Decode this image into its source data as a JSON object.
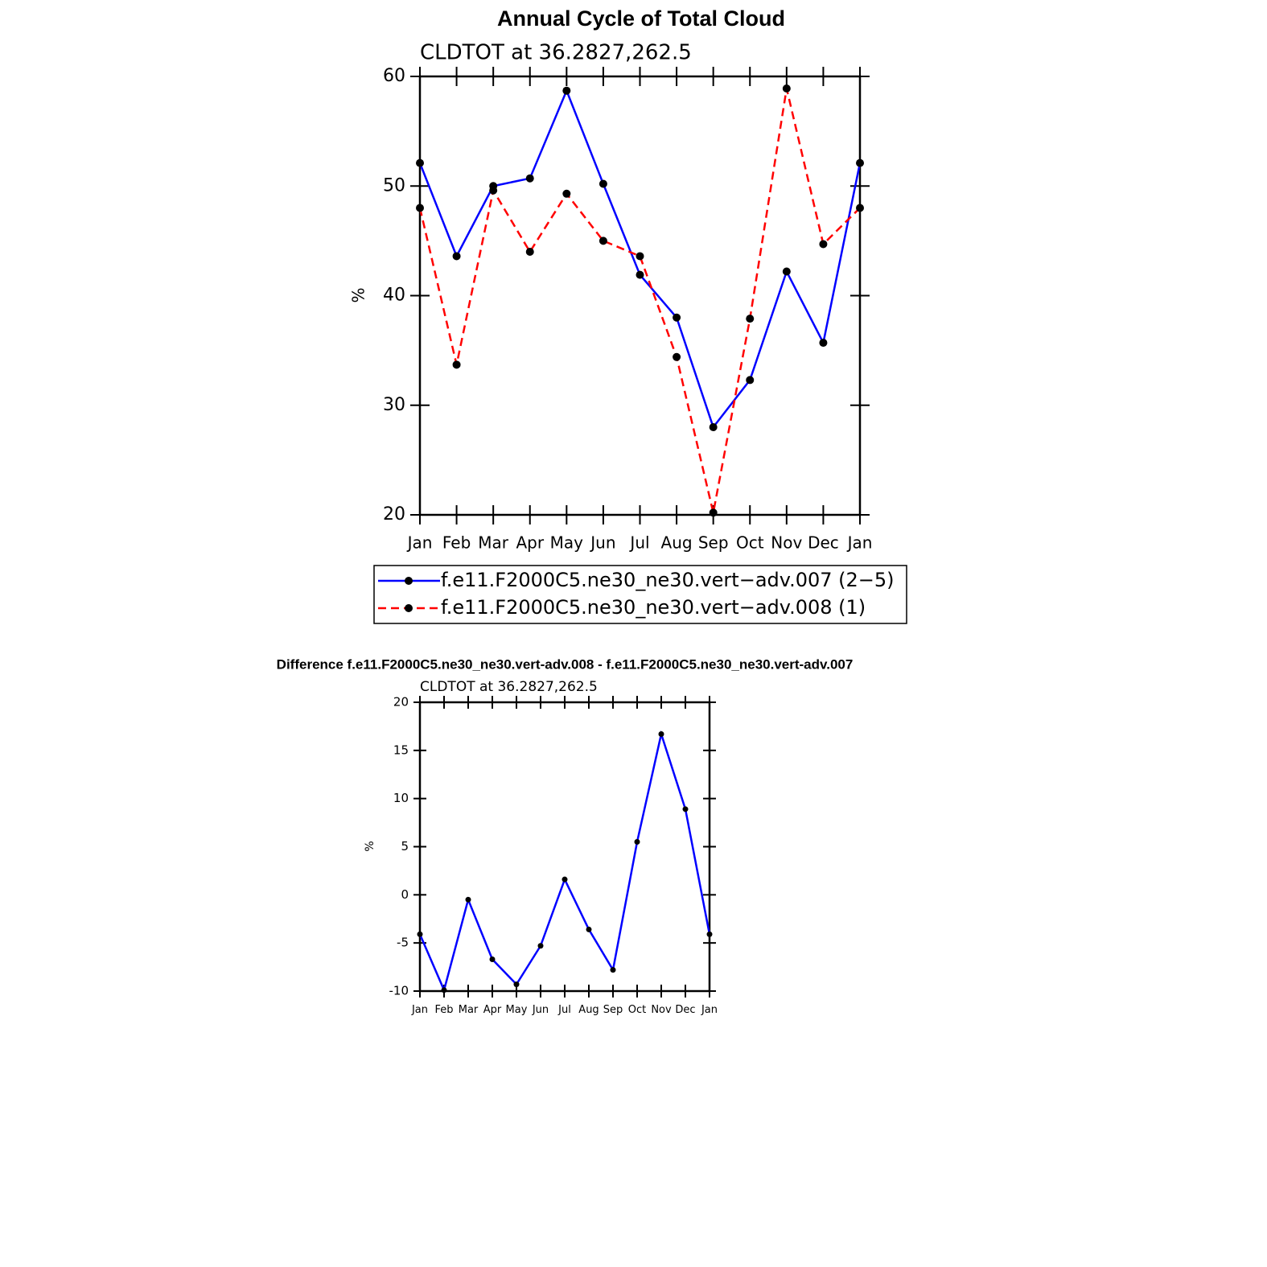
{
  "chart_data": [
    {
      "type": "line",
      "title": "Annual Cycle of Total Cloud",
      "subtitle": "CLDTOT at 36.2827,262.5",
      "y_label": "%",
      "categories": [
        "Jan",
        "Feb",
        "Mar",
        "Apr",
        "May",
        "Jun",
        "Jul",
        "Aug",
        "Sep",
        "Oct",
        "Nov",
        "Dec",
        "Jan"
      ],
      "ylim": [
        20,
        60
      ],
      "yticks": [
        20,
        30,
        40,
        50,
        60
      ],
      "legend": "bottom",
      "series": [
        {
          "name": "f.e11.F2000C5.ne30_ne30.vert−adv.007 (2−5)",
          "color": "#0000ff",
          "dashed": false,
          "values": [
            52.1,
            43.6,
            50.0,
            50.7,
            58.7,
            50.2,
            41.9,
            38.0,
            28.0,
            32.3,
            42.2,
            35.7,
            52.1
          ]
        },
        {
          "name": "f.e11.F2000C5.ne30_ne30.vert−adv.008 (1)",
          "color": "#ff0000",
          "dashed": true,
          "values": [
            48.0,
            33.7,
            49.6,
            44.0,
            49.3,
            45.0,
            43.6,
            34.4,
            20.2,
            37.9,
            58.9,
            44.7,
            48.0
          ]
        }
      ]
    },
    {
      "type": "line",
      "title": "Difference f.e11.F2000C5.ne30_ne30.vert-adv.008 - f.e11.F2000C5.ne30_ne30.vert-adv.007",
      "subtitle": "CLDTOT at 36.2827,262.5",
      "y_label": "%",
      "categories": [
        "Jan",
        "Feb",
        "Mar",
        "Apr",
        "May",
        "Jun",
        "Jul",
        "Aug",
        "Sep",
        "Oct",
        "Nov",
        "Dec",
        "Jan"
      ],
      "ylim": [
        -10,
        20
      ],
      "yticks": [
        -10,
        -5,
        0,
        5,
        10,
        15,
        20
      ],
      "series": [
        {
          "color": "#0000ff",
          "dashed": false,
          "values": [
            -4.1,
            -9.9,
            -0.5,
            -6.7,
            -9.3,
            -5.3,
            1.6,
            -3.6,
            -7.8,
            5.5,
            16.7,
            8.9,
            -4.1
          ]
        }
      ]
    }
  ]
}
